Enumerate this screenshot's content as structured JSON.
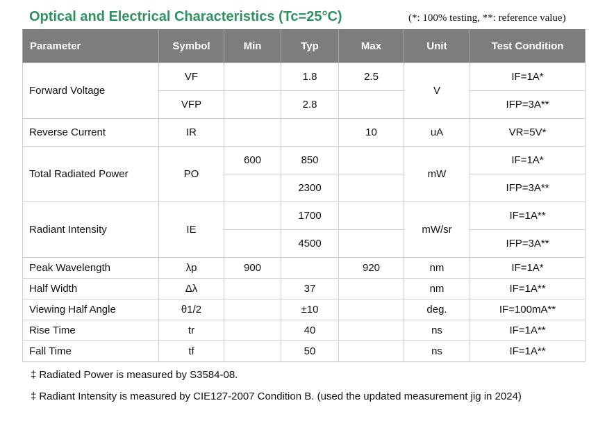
{
  "title": "Optical and Electrical Characteristics (Tc=25°C)",
  "note": "(*: 100% testing, **: reference value)",
  "headers": {
    "parameter": "Parameter",
    "symbol": "Symbol",
    "min": "Min",
    "typ": "Typ",
    "max": "Max",
    "unit": "Unit",
    "condition": "Test Condition"
  },
  "rows": {
    "forward_voltage": {
      "label": "Forward Voltage",
      "unit": "V",
      "vf": {
        "symbol": "VF",
        "min": "",
        "typ": "1.8",
        "max": "2.5",
        "condition": "IF=1A*"
      },
      "vfp": {
        "symbol": "VFP",
        "min": "",
        "typ": "2.8",
        "max": "",
        "condition": "IFP=3A**"
      }
    },
    "reverse_current": {
      "label": "Reverse Current",
      "symbol": "IR",
      "min": "",
      "typ": "",
      "max": "10",
      "unit": "uA",
      "condition": "VR=5V*"
    },
    "total_radiated_power": {
      "label": "Total Radiated Power",
      "symbol": "PO",
      "unit": "mW",
      "a": {
        "min": "600",
        "typ": "850",
        "max": "",
        "condition": "IF=1A*"
      },
      "b": {
        "min": "",
        "typ": "2300",
        "max": "",
        "condition": "IFP=3A**"
      }
    },
    "radiant_intensity": {
      "label": "Radiant Intensity",
      "symbol": "IE",
      "unit": "mW/sr",
      "a": {
        "min": "",
        "typ": "1700",
        "max": "",
        "condition": "IF=1A**"
      },
      "b": {
        "min": "",
        "typ": "4500",
        "max": "",
        "condition": "IFP=3A**"
      }
    },
    "peak_wavelength": {
      "label": "Peak Wavelength",
      "symbol": "λp",
      "min": "900",
      "typ": "",
      "max": "920",
      "unit": "nm",
      "condition": "IF=1A*"
    },
    "half_width": {
      "label": "Half Width",
      "symbol": "Δλ",
      "min": "",
      "typ": "37",
      "max": "",
      "unit": "nm",
      "condition": "IF=1A**"
    },
    "viewing_half_angle": {
      "label": "Viewing Half Angle",
      "symbol": "θ1/2",
      "min": "",
      "typ": "±10",
      "max": "",
      "unit": "deg.",
      "condition": "IF=100mA**"
    },
    "rise_time": {
      "label": "Rise Time",
      "symbol": "tr",
      "min": "",
      "typ": "40",
      "max": "",
      "unit": "ns",
      "condition": "IF=1A**"
    },
    "fall_time": {
      "label": "Fall Time",
      "symbol": "tf",
      "min": "",
      "typ": "50",
      "max": "",
      "unit": "ns",
      "condition": "IF=1A**"
    }
  },
  "footnotes": {
    "marker": "‡",
    "power": "Radiated Power is measured by S3584-08.",
    "intensity": "Radiant Intensity is measured by CIE127-2007 Condition B. (used the updated measurement jig in 2024)"
  }
}
